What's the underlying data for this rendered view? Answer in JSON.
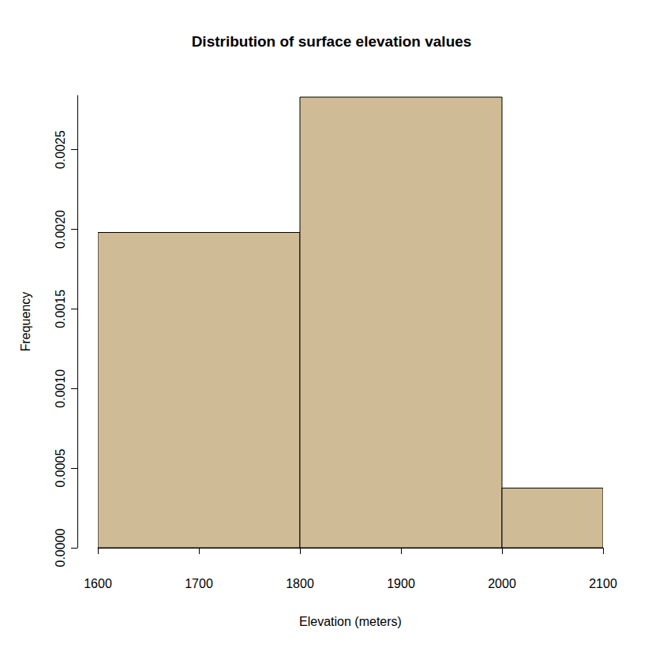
{
  "chart_data": {
    "type": "histogram",
    "title": "Distribution of surface elevation values",
    "xlabel": "Elevation (meters)",
    "ylabel": "Frequency",
    "bins": [
      1600,
      1800,
      2000,
      2100
    ],
    "values": [
      0.00198,
      0.00283,
      0.000375
    ],
    "color": "#cfbc96",
    "xlim": [
      1600,
      2100
    ],
    "xticks": [
      1600,
      1700,
      1800,
      1900,
      2000,
      2100
    ],
    "ylim": [
      0,
      0.00284
    ],
    "yticks": [
      {
        "value": 0,
        "label": "0.0000"
      },
      {
        "value": 0.0005,
        "label": "0.0005"
      },
      {
        "value": 0.001,
        "label": "0.0010"
      },
      {
        "value": 0.0015,
        "label": "0.0015"
      },
      {
        "value": 0.002,
        "label": "0.0020"
      },
      {
        "value": 0.0025,
        "label": "0.0025"
      }
    ],
    "grid": false
  }
}
